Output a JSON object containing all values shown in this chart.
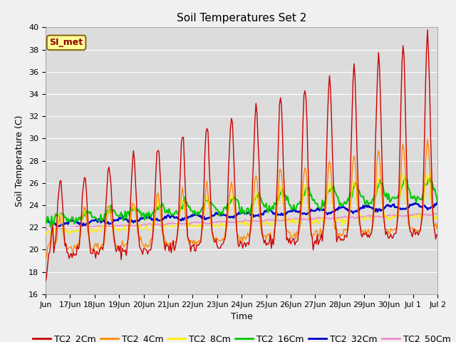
{
  "title": "Soil Temperatures Set 2",
  "xlabel": "Time",
  "ylabel": "Soil Temperature (C)",
  "ylim": [
    16,
    40
  ],
  "yticks": [
    16,
    18,
    20,
    22,
    24,
    26,
    28,
    30,
    32,
    34,
    36,
    38,
    40
  ],
  "background_color": "#dcdcdc",
  "plot_bg_color": "#dcdcdc",
  "series_colors": {
    "TC2_2Cm": "#cc0000",
    "TC2_4Cm": "#ff8800",
    "TC2_8Cm": "#ffee00",
    "TC2_16Cm": "#00cc00",
    "TC2_32Cm": "#0000cc",
    "TC2_50Cm": "#ee88cc"
  },
  "annotation_text": "SI_met",
  "annotation_color": "#8b0000",
  "annotation_bg": "#ffff99",
  "annotation_border": "#8b6914",
  "title_fontsize": 11,
  "tick_fontsize": 8,
  "axis_label_fontsize": 9,
  "legend_fontsize": 9
}
